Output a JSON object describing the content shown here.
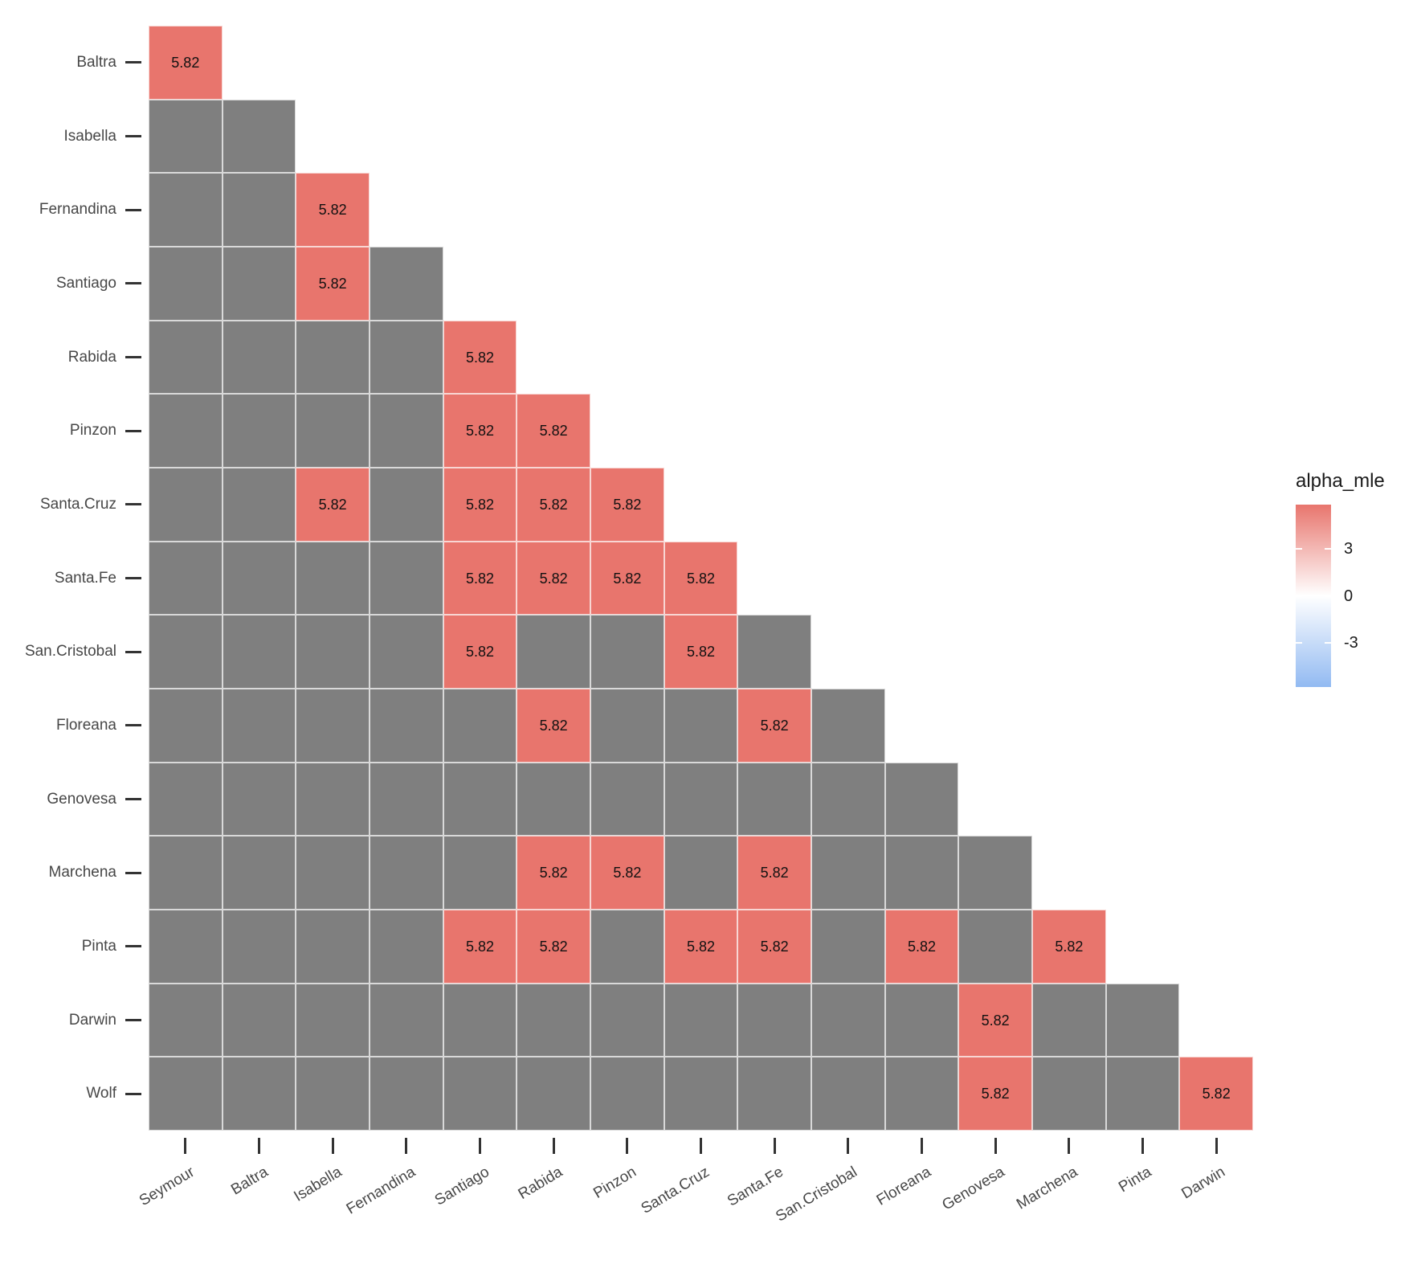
{
  "chart_data": {
    "type": "heatmap",
    "subtype": "lower-triangular-pairwise-matrix",
    "x_categories": [
      "Seymour",
      "Baltra",
      "Isabella",
      "Fernandina",
      "Santiago",
      "Rabida",
      "Pinzon",
      "Santa.Cruz",
      "Santa.Fe",
      "San.Cristobal",
      "Floreana",
      "Genovesa",
      "Marchena",
      "Pinta",
      "Darwin"
    ],
    "y_categories": [
      "Baltra",
      "Isabella",
      "Fernandina",
      "Santiago",
      "Rabida",
      "Pinzon",
      "Santa.Cruz",
      "Santa.Fe",
      "San.Cristobal",
      "Floreana",
      "Genovesa",
      "Marchena",
      "Pinta",
      "Darwin",
      "Wolf"
    ],
    "triangle_rule": "row i (1-based) spans x columns 1..i",
    "na_color": "#7F7F7F",
    "highlight_color": "#E8756D",
    "highlight_value": 5.82,
    "highlight_label": "5.82",
    "highlighted_cells": [
      {
        "y": "Baltra",
        "x": "Seymour",
        "value": 5.82
      },
      {
        "y": "Fernandina",
        "x": "Isabella",
        "value": 5.82
      },
      {
        "y": "Santiago",
        "x": "Isabella",
        "value": 5.82
      },
      {
        "y": "Rabida",
        "x": "Santiago",
        "value": 5.82
      },
      {
        "y": "Pinzon",
        "x": "Santiago",
        "value": 5.82
      },
      {
        "y": "Pinzon",
        "x": "Rabida",
        "value": 5.82
      },
      {
        "y": "Santa.Cruz",
        "x": "Isabella",
        "value": 5.82
      },
      {
        "y": "Santa.Cruz",
        "x": "Santiago",
        "value": 5.82
      },
      {
        "y": "Santa.Cruz",
        "x": "Rabida",
        "value": 5.82
      },
      {
        "y": "Santa.Cruz",
        "x": "Pinzon",
        "value": 5.82
      },
      {
        "y": "Santa.Fe",
        "x": "Santiago",
        "value": 5.82
      },
      {
        "y": "Santa.Fe",
        "x": "Rabida",
        "value": 5.82
      },
      {
        "y": "Santa.Fe",
        "x": "Pinzon",
        "value": 5.82
      },
      {
        "y": "Santa.Fe",
        "x": "Santa.Cruz",
        "value": 5.82
      },
      {
        "y": "San.Cristobal",
        "x": "Santiago",
        "value": 5.82
      },
      {
        "y": "San.Cristobal",
        "x": "Santa.Cruz",
        "value": 5.82
      },
      {
        "y": "Floreana",
        "x": "Rabida",
        "value": 5.82
      },
      {
        "y": "Floreana",
        "x": "Santa.Fe",
        "value": 5.82
      },
      {
        "y": "Marchena",
        "x": "Rabida",
        "value": 5.82
      },
      {
        "y": "Marchena",
        "x": "Pinzon",
        "value": 5.82
      },
      {
        "y": "Marchena",
        "x": "Santa.Fe",
        "value": 5.82
      },
      {
        "y": "Pinta",
        "x": "Santiago",
        "value": 5.82
      },
      {
        "y": "Pinta",
        "x": "Rabida",
        "value": 5.82
      },
      {
        "y": "Pinta",
        "x": "Santa.Cruz",
        "value": 5.82
      },
      {
        "y": "Pinta",
        "x": "Santa.Fe",
        "value": 5.82
      },
      {
        "y": "Pinta",
        "x": "Floreana",
        "value": 5.82
      },
      {
        "y": "Pinta",
        "x": "Marchena",
        "value": 5.82
      },
      {
        "y": "Darwin",
        "x": "Genovesa",
        "value": 5.82
      },
      {
        "y": "Wolf",
        "x": "Genovesa",
        "value": 5.82
      },
      {
        "y": "Wolf",
        "x": "Darwin",
        "value": 5.82
      }
    ],
    "legend": {
      "title": "alpha_mle",
      "position": "right",
      "tick_labels": [
        "3",
        "0",
        "-3"
      ],
      "tick_values": [
        3,
        0,
        -3
      ],
      "scale_domain": [
        -5.82,
        5.82
      ],
      "gradient_top_color": "#E8756D",
      "gradient_mid_color": "#FFFFFF",
      "gradient_bottom_color": "#92BAF2"
    },
    "grid": "white 1px lines between tiles, white panel background, no axis lines"
  }
}
